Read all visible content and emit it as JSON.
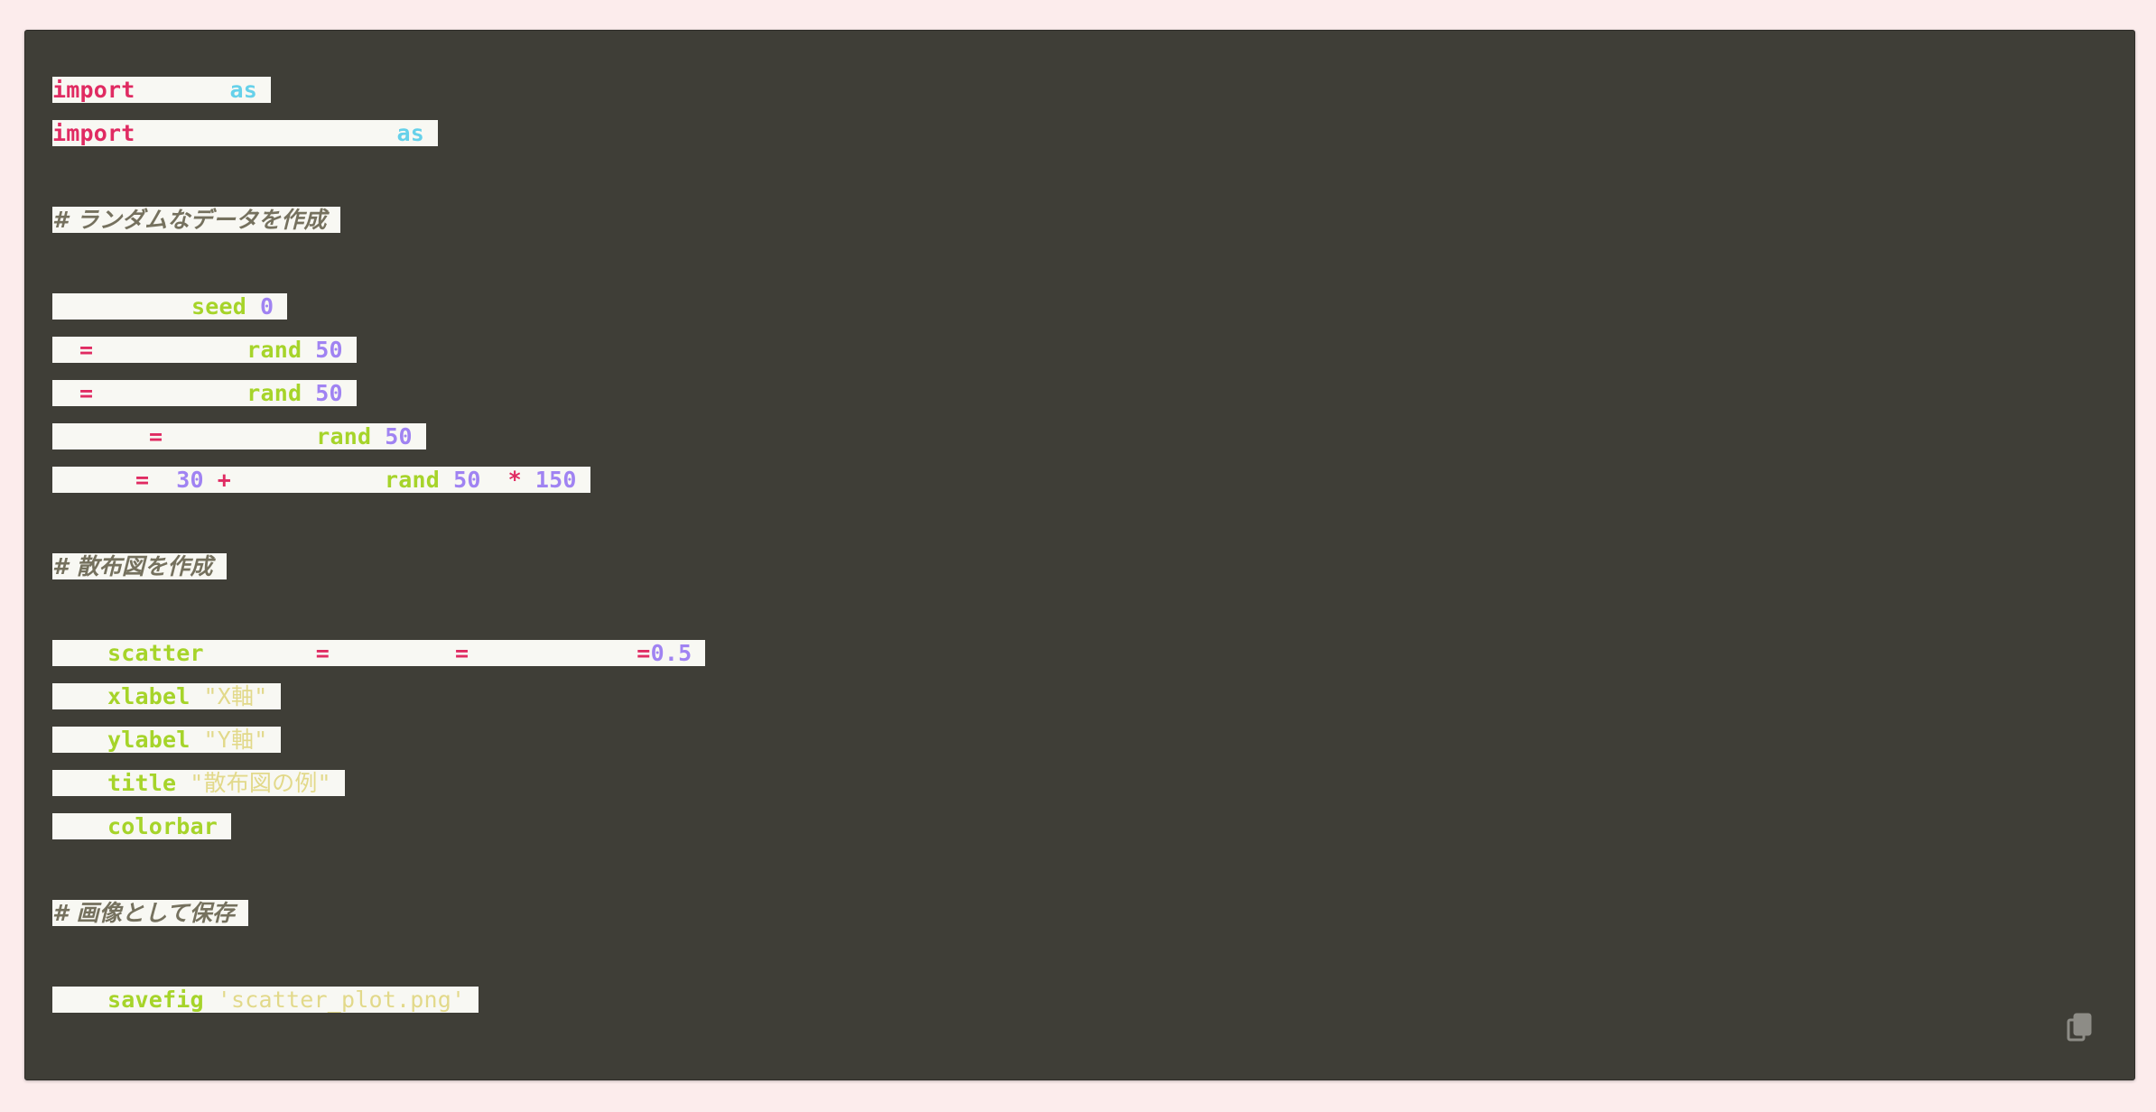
{
  "code_block": {
    "lines": [
      {
        "kind": "code",
        "tokens": [
          {
            "t": "kw",
            "text": "import"
          },
          {
            "t": "gap",
            "w": 105
          },
          {
            "t": "as",
            "text": "as"
          }
        ]
      },
      {
        "kind": "code",
        "tokens": [
          {
            "t": "kw",
            "text": "import"
          },
          {
            "t": "gap",
            "w": 290
          },
          {
            "t": "as",
            "text": "as"
          }
        ]
      },
      {
        "kind": "blank"
      },
      {
        "kind": "code",
        "tokens": [
          {
            "t": "cmt",
            "text": "# ランダムなデータを作成"
          }
        ]
      },
      {
        "kind": "blank"
      },
      {
        "kind": "code",
        "tokens": [
          {
            "t": "gap",
            "w": 154
          },
          {
            "t": "fn",
            "text": "seed"
          },
          {
            "t": "gap",
            "w": 15
          },
          {
            "t": "num",
            "text": "0"
          }
        ]
      },
      {
        "kind": "code",
        "tokens": [
          {
            "t": "gap",
            "w": 30
          },
          {
            "t": "op",
            "text": "="
          },
          {
            "t": "gap",
            "w": 170
          },
          {
            "t": "fn",
            "text": "rand"
          },
          {
            "t": "gap",
            "w": 15
          },
          {
            "t": "num",
            "text": "50"
          }
        ]
      },
      {
        "kind": "code",
        "tokens": [
          {
            "t": "gap",
            "w": 30
          },
          {
            "t": "op",
            "text": "="
          },
          {
            "t": "gap",
            "w": 170
          },
          {
            "t": "fn",
            "text": "rand"
          },
          {
            "t": "gap",
            "w": 15
          },
          {
            "t": "num",
            "text": "50"
          }
        ]
      },
      {
        "kind": "code",
        "tokens": [
          {
            "t": "gap",
            "w": 107
          },
          {
            "t": "op",
            "text": "="
          },
          {
            "t": "gap",
            "w": 170
          },
          {
            "t": "fn",
            "text": "rand"
          },
          {
            "t": "gap",
            "w": 15
          },
          {
            "t": "num",
            "text": "50"
          }
        ]
      },
      {
        "kind": "code",
        "tokens": [
          {
            "t": "gap",
            "w": 92
          },
          {
            "t": "op",
            "text": "="
          },
          {
            "t": "gap",
            "w": 30
          },
          {
            "t": "num",
            "text": "30"
          },
          {
            "t": "gap",
            "w": 15
          },
          {
            "t": "op",
            "text": "+"
          },
          {
            "t": "gap",
            "w": 170
          },
          {
            "t": "fn",
            "text": "rand"
          },
          {
            "t": "gap",
            "w": 15
          },
          {
            "t": "num",
            "text": "50"
          },
          {
            "t": "gap",
            "w": 30
          },
          {
            "t": "op",
            "text": "*"
          },
          {
            "t": "gap",
            "w": 15
          },
          {
            "t": "num",
            "text": "150"
          }
        ]
      },
      {
        "kind": "blank"
      },
      {
        "kind": "code",
        "tokens": [
          {
            "t": "cmt",
            "text": "# 散布図を作成"
          }
        ]
      },
      {
        "kind": "blank"
      },
      {
        "kind": "code",
        "tokens": [
          {
            "t": "gap",
            "w": 61
          },
          {
            "t": "fn",
            "text": "scatter"
          },
          {
            "t": "gap",
            "w": 124
          },
          {
            "t": "op",
            "text": "="
          },
          {
            "t": "gap",
            "w": 139
          },
          {
            "t": "op",
            "text": "="
          },
          {
            "t": "gap",
            "w": 186
          },
          {
            "t": "op",
            "text": "="
          },
          {
            "t": "num",
            "text": "0.5"
          }
        ]
      },
      {
        "kind": "code",
        "tokens": [
          {
            "t": "gap",
            "w": 61
          },
          {
            "t": "fn",
            "text": "xlabel"
          },
          {
            "t": "gap",
            "w": 15
          },
          {
            "t": "str",
            "text": "\"X軸\""
          }
        ]
      },
      {
        "kind": "code",
        "tokens": [
          {
            "t": "gap",
            "w": 61
          },
          {
            "t": "fn",
            "text": "ylabel"
          },
          {
            "t": "gap",
            "w": 15
          },
          {
            "t": "str",
            "text": "\"Y軸\""
          }
        ]
      },
      {
        "kind": "code",
        "tokens": [
          {
            "t": "gap",
            "w": 61
          },
          {
            "t": "fn",
            "text": "title"
          },
          {
            "t": "gap",
            "w": 15
          },
          {
            "t": "str",
            "text": "\"散布図の例\""
          }
        ]
      },
      {
        "kind": "code",
        "tokens": [
          {
            "t": "gap",
            "w": 61
          },
          {
            "t": "fn",
            "text": "colorbar"
          }
        ]
      },
      {
        "kind": "blank"
      },
      {
        "kind": "code",
        "tokens": [
          {
            "t": "cmt",
            "text": "# 画像として保存"
          }
        ]
      },
      {
        "kind": "blank"
      },
      {
        "kind": "code",
        "tokens": [
          {
            "t": "gap",
            "w": 61
          },
          {
            "t": "fn",
            "text": "savefig"
          },
          {
            "t": "gap",
            "w": 15
          },
          {
            "t": "str",
            "text": "'scatter_plot.png'"
          }
        ]
      }
    ]
  },
  "copy_icon": "copy-icon",
  "colors": {
    "background": "#fcecec",
    "code_background": "#3f3e37",
    "highlight": "#f8f8f3",
    "keyword": "#e02b62",
    "alias_keyword": "#66d1ea",
    "function": "#a6d42a",
    "number": "#a083f2",
    "string": "#e2d98a",
    "comment": "#75715e"
  }
}
